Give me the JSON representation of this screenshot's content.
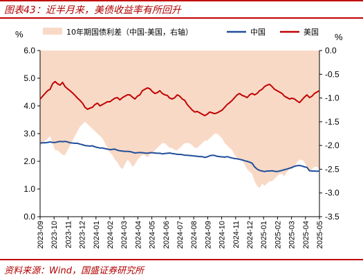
{
  "header": {
    "title": "图表43：近半月来，美债收益率有所回升"
  },
  "footer": {
    "source": "资料来源：Wind，国盛证券研究所"
  },
  "chart_data": {
    "type": "line",
    "left_axis": {
      "label": "%",
      "ylim": [
        0,
        6
      ],
      "ticks": [
        "0.0",
        "1.0",
        "2.0",
        "3.0",
        "4.0",
        "5.0",
        "6.0"
      ]
    },
    "right_axis": {
      "label": "%",
      "ylim": [
        -3.5,
        0
      ],
      "ticks": [
        "0.0",
        "-0.5",
        "-1.0",
        "-1.5",
        "-2.0",
        "-2.5",
        "-3.0",
        "-3.5"
      ]
    },
    "x_ticks": [
      "2023-09",
      "2023-10",
      "2023-11",
      "2023-12",
      "2024-01",
      "2024-02",
      "2024-03",
      "2024-04",
      "2024-05",
      "2024-06",
      "2024-07",
      "2024-08",
      "2024-09",
      "2024-10",
      "2024-11",
      "2024-12",
      "2025-01",
      "2025-02",
      "2025-03",
      "2025-04",
      "2025-05"
    ],
    "x_range": [
      "2023-09",
      "2025-05"
    ],
    "grid": false,
    "legend_position": "top",
    "series": [
      {
        "name": "10年期国债利差（中国-美国，右轴）",
        "type": "area",
        "axis": "right",
        "color": "#f8d9c6",
        "values": [
          -2.0,
          -1.95,
          -1.9,
          -1.85,
          -1.8,
          -1.95,
          -2.1,
          -2.1,
          -2.15,
          -2.2,
          -2.2,
          -2.1,
          -2.0,
          -1.9,
          -1.8,
          -1.7,
          -1.6,
          -1.55,
          -1.5,
          -1.55,
          -1.6,
          -1.65,
          -1.7,
          -1.75,
          -1.8,
          -1.85,
          -1.95,
          -2.05,
          -2.15,
          -2.2,
          -2.3,
          -2.35,
          -2.45,
          -2.5,
          -2.4,
          -2.3,
          -2.35,
          -2.45,
          -2.4,
          -2.3,
          -2.25,
          -2.2,
          -2.2,
          -2.25,
          -2.2,
          -2.15,
          -2.1,
          -2.05,
          -2.0,
          -1.95,
          -1.95,
          -2.0,
          -2.05,
          -2.05,
          -2.1,
          -2.1,
          -2.05,
          -2.0,
          -1.95,
          -1.95,
          -1.95,
          -2.0,
          -2.05,
          -2.05,
          -2.0,
          -1.95,
          -1.9,
          -1.9,
          -1.85,
          -1.8,
          -1.75,
          -1.75,
          -1.8,
          -1.85,
          -1.95,
          -2.0,
          -2.05,
          -2.1,
          -2.2,
          -2.25,
          -2.3,
          -2.3,
          -2.4,
          -2.5,
          -2.55,
          -2.6,
          -2.75,
          -2.85,
          -2.9,
          -2.8,
          -2.85,
          -2.8,
          -2.75,
          -2.75,
          -2.7,
          -2.65,
          -2.6,
          -2.6,
          -2.65,
          -2.55,
          -2.5,
          -2.5,
          -2.45,
          -2.35,
          -2.3,
          -2.3,
          -2.35,
          -2.45,
          -2.55,
          -2.5,
          -2.45,
          -2.45,
          -2.5
        ]
      },
      {
        "name": "中国",
        "type": "line",
        "axis": "left",
        "color": "#1f4e9a",
        "values": [
          2.66,
          2.67,
          2.67,
          2.68,
          2.7,
          2.68,
          2.68,
          2.7,
          2.72,
          2.71,
          2.72,
          2.7,
          2.67,
          2.66,
          2.65,
          2.65,
          2.62,
          2.6,
          2.57,
          2.56,
          2.55,
          2.56,
          2.52,
          2.5,
          2.48,
          2.48,
          2.46,
          2.44,
          2.42,
          2.43,
          2.44,
          2.4,
          2.38,
          2.37,
          2.36,
          2.36,
          2.35,
          2.33,
          2.3,
          2.31,
          2.32,
          2.31,
          2.3,
          2.29,
          2.31,
          2.31,
          2.3,
          2.29,
          2.29,
          2.27,
          2.28,
          2.29,
          2.3,
          2.28,
          2.27,
          2.25,
          2.25,
          2.24,
          2.22,
          2.22,
          2.21,
          2.2,
          2.19,
          2.18,
          2.17,
          2.17,
          2.14,
          2.16,
          2.2,
          2.22,
          2.21,
          2.18,
          2.17,
          2.16,
          2.15,
          2.17,
          2.14,
          2.12,
          2.1,
          2.09,
          2.07,
          2.05,
          2.02,
          2.0,
          1.97,
          1.93,
          1.8,
          1.72,
          1.67,
          1.65,
          1.63,
          1.65,
          1.65,
          1.66,
          1.64,
          1.63,
          1.65,
          1.67,
          1.7,
          1.72,
          1.75,
          1.78,
          1.82,
          1.84,
          1.85,
          1.83,
          1.8,
          1.78,
          1.66,
          1.65,
          1.65,
          1.64,
          1.65
        ]
      },
      {
        "name": "美国",
        "type": "line",
        "axis": "left",
        "color": "#c00000",
        "values": [
          4.25,
          4.35,
          4.45,
          4.55,
          4.6,
          4.8,
          4.88,
          4.8,
          4.75,
          4.85,
          4.7,
          4.62,
          4.55,
          4.47,
          4.38,
          4.28,
          4.2,
          4.1,
          3.95,
          3.88,
          3.92,
          3.95,
          4.05,
          4.1,
          4.0,
          4.05,
          4.1,
          4.15,
          4.15,
          4.22,
          4.28,
          4.3,
          4.22,
          4.3,
          4.35,
          4.4,
          4.4,
          4.32,
          4.25,
          4.35,
          4.4,
          4.55,
          4.6,
          4.65,
          4.62,
          4.52,
          4.45,
          4.48,
          4.55,
          4.45,
          4.4,
          4.38,
          4.28,
          4.25,
          4.3,
          4.4,
          4.35,
          4.25,
          4.2,
          4.05,
          3.95,
          3.85,
          3.78,
          3.8,
          3.75,
          3.7,
          3.65,
          3.7,
          3.78,
          3.75,
          3.72,
          3.75,
          3.8,
          3.85,
          3.95,
          4.05,
          4.12,
          4.2,
          4.3,
          4.4,
          4.45,
          4.38,
          4.35,
          4.3,
          4.4,
          4.45,
          4.4,
          4.45,
          4.55,
          4.6,
          4.7,
          4.75,
          4.78,
          4.7,
          4.6,
          4.55,
          4.5,
          4.45,
          4.35,
          4.3,
          4.25,
          4.28,
          4.25,
          4.18,
          4.12,
          4.22,
          4.32,
          4.4,
          4.3,
          4.35,
          4.45,
          4.5,
          4.55
        ]
      }
    ]
  }
}
